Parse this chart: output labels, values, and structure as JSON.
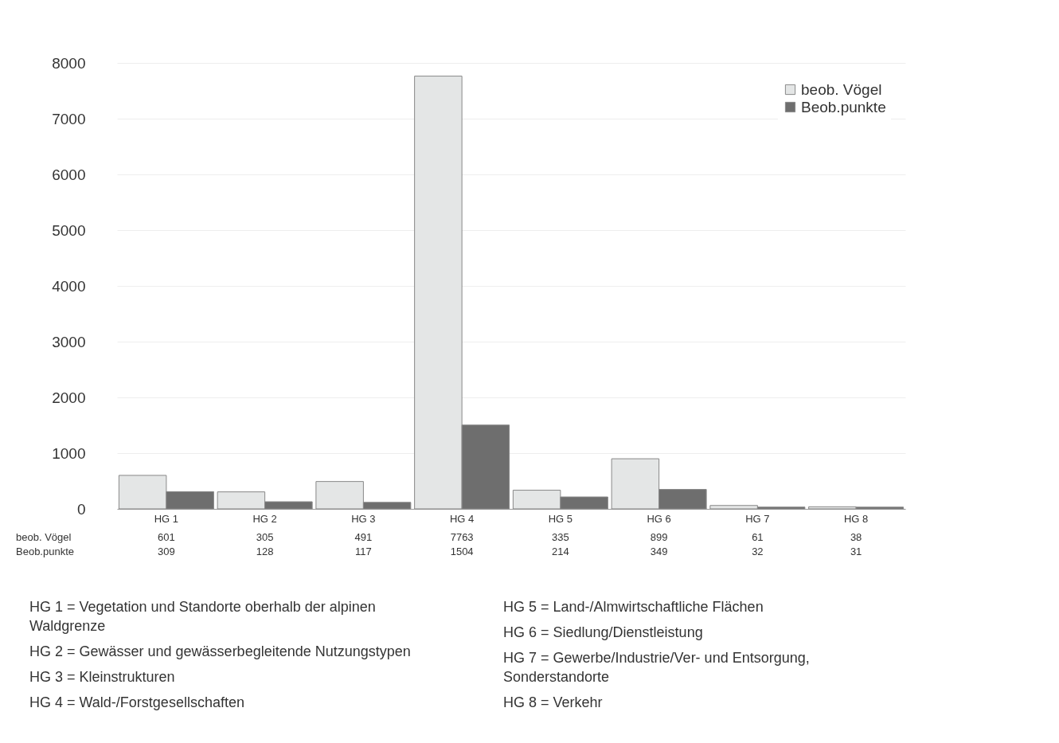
{
  "chart_data": {
    "type": "bar",
    "categories": [
      "HG 1",
      "HG 2",
      "HG 3",
      "HG 4",
      "HG 5",
      "HG 6",
      "HG 7",
      "HG 8"
    ],
    "series": [
      {
        "name": "beob.  Vögel",
        "color": "#e4e6e6",
        "values": [
          601,
          305,
          491,
          7763,
          335,
          899,
          61,
          38
        ]
      },
      {
        "name": "Beob.punkte",
        "color": "#6e6e6e",
        "values": [
          309,
          128,
          117,
          1504,
          214,
          349,
          32,
          31
        ]
      }
    ],
    "ylim": [
      0,
      8000
    ],
    "yticks": [
      0,
      1000,
      2000,
      3000,
      4000,
      5000,
      6000,
      7000,
      8000
    ],
    "grid": "y",
    "legend": "top right",
    "data_labels": true,
    "annotations": [
      "HG 1 = Vegetation und Standorte oberhalb der alpinen Waldgrenze",
      "HG 2 = Gewässer und gewässerbegleitende Nutzungstypen",
      "HG 3 = Kleinstrukturen",
      "HG 4 = Wald-/Forstgesellschaften",
      "HG 5 = Land-/Almwirtschaftliche Flächen",
      "HG 6 = Siedlung/Dienstleistung",
      "HG 7 = Gewerbe/Industrie/Ver- und Entsorgung, Sonderstandorte",
      "HG 8 = Verkehr"
    ]
  }
}
